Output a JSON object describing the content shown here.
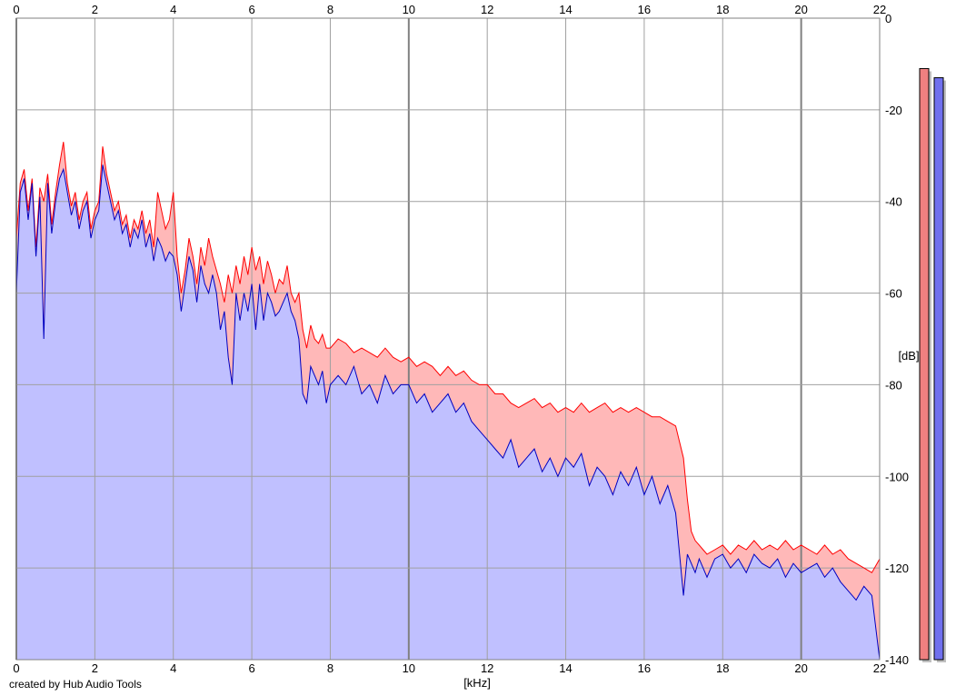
{
  "credit": "created by Hub Audio Tools",
  "chart_data": {
    "type": "area",
    "xlabel": "[kHz]",
    "ylabel": "[dB]",
    "xlim": [
      0,
      22
    ],
    "ylim": [
      -140,
      0
    ],
    "x_ticks": [
      0,
      2,
      4,
      6,
      8,
      10,
      12,
      14,
      16,
      18,
      20,
      22
    ],
    "y_ticks": [
      0,
      -20,
      -40,
      -60,
      -80,
      -100,
      -120,
      -140
    ],
    "grid": true,
    "series": [
      {
        "color": "#ff0000",
        "fill": "#ffb8b8",
        "x": [
          0.0,
          0.1,
          0.2,
          0.3,
          0.4,
          0.5,
          0.6,
          0.7,
          0.8,
          0.9,
          1.0,
          1.1,
          1.2,
          1.3,
          1.4,
          1.5,
          1.6,
          1.7,
          1.8,
          1.9,
          2.0,
          2.1,
          2.2,
          2.3,
          2.4,
          2.5,
          2.6,
          2.7,
          2.8,
          2.9,
          3.0,
          3.1,
          3.2,
          3.3,
          3.4,
          3.5,
          3.6,
          3.7,
          3.8,
          3.9,
          4.0,
          4.1,
          4.2,
          4.3,
          4.4,
          4.5,
          4.6,
          4.7,
          4.8,
          4.9,
          5.0,
          5.1,
          5.2,
          5.3,
          5.4,
          5.5,
          5.6,
          5.7,
          5.8,
          5.9,
          6.0,
          6.1,
          6.2,
          6.3,
          6.4,
          6.5,
          6.6,
          6.7,
          6.8,
          6.9,
          7.0,
          7.1,
          7.2,
          7.3,
          7.4,
          7.5,
          7.6,
          7.7,
          7.8,
          7.9,
          8.0,
          8.2,
          8.4,
          8.6,
          8.8,
          9.0,
          9.2,
          9.4,
          9.6,
          9.8,
          10.0,
          10.2,
          10.4,
          10.6,
          10.8,
          11.0,
          11.2,
          11.4,
          11.6,
          11.8,
          12.0,
          12.2,
          12.4,
          12.6,
          12.8,
          13.0,
          13.2,
          13.4,
          13.6,
          13.8,
          14.0,
          14.2,
          14.4,
          14.6,
          14.8,
          15.0,
          15.2,
          15.4,
          15.6,
          15.8,
          16.0,
          16.2,
          16.4,
          16.6,
          16.8,
          17.0,
          17.1,
          17.2,
          17.3,
          17.4,
          17.5,
          17.6,
          17.8,
          18.0,
          18.2,
          18.4,
          18.6,
          18.8,
          19.0,
          19.2,
          19.4,
          19.6,
          19.8,
          20.0,
          20.2,
          20.4,
          20.6,
          20.8,
          21.0,
          21.2,
          21.4,
          21.6,
          21.8,
          22.0
        ],
        "values": [
          -48,
          -36,
          -33,
          -42,
          -35,
          -50,
          -37,
          -40,
          -34,
          -45,
          -38,
          -32,
          -27,
          -36,
          -41,
          -38,
          -44,
          -40,
          -38,
          -46,
          -42,
          -40,
          -28,
          -34,
          -38,
          -42,
          -40,
          -45,
          -43,
          -48,
          -44,
          -46,
          -42,
          -47,
          -44,
          -50,
          -38,
          -42,
          -46,
          -44,
          -38,
          -52,
          -60,
          -55,
          -48,
          -52,
          -58,
          -50,
          -54,
          -48,
          -52,
          -55,
          -58,
          -62,
          -56,
          -60,
          -54,
          -58,
          -52,
          -56,
          -50,
          -55,
          -52,
          -58,
          -53,
          -56,
          -60,
          -57,
          -58,
          -54,
          -60,
          -62,
          -60,
          -68,
          -72,
          -67,
          -70,
          -71,
          -69,
          -72,
          -72,
          -70,
          -71,
          -73,
          -72,
          -73,
          -74,
          -72,
          -74,
          -75,
          -74,
          -76,
          -75,
          -76,
          -78,
          -76,
          -78,
          -77,
          -79,
          -80,
          -80,
          -82,
          -82,
          -84,
          -85,
          -84,
          -83,
          -85,
          -84,
          -86,
          -85,
          -86,
          -84,
          -86,
          -85,
          -84,
          -86,
          -85,
          -86,
          -85,
          -86,
          -87,
          -87,
          -88,
          -89,
          -96,
          -105,
          -112,
          -114,
          -115,
          -116,
          -117,
          -116,
          -115,
          -117,
          -115,
          -116,
          -114,
          -116,
          -115,
          -116,
          -114,
          -116,
          -115,
          -116,
          -117,
          -115,
          -117,
          -116,
          -118,
          -119,
          -120,
          -121,
          -118
        ]
      },
      {
        "color": "#0000c0",
        "fill": "#c0c0ff",
        "x": [
          0.0,
          0.1,
          0.2,
          0.3,
          0.4,
          0.5,
          0.6,
          0.7,
          0.8,
          0.9,
          1.0,
          1.1,
          1.2,
          1.3,
          1.4,
          1.5,
          1.6,
          1.7,
          1.8,
          1.9,
          2.0,
          2.1,
          2.2,
          2.3,
          2.4,
          2.5,
          2.6,
          2.7,
          2.8,
          2.9,
          3.0,
          3.1,
          3.2,
          3.3,
          3.4,
          3.5,
          3.6,
          3.7,
          3.8,
          3.9,
          4.0,
          4.1,
          4.2,
          4.3,
          4.4,
          4.5,
          4.6,
          4.7,
          4.8,
          4.9,
          5.0,
          5.1,
          5.2,
          5.3,
          5.4,
          5.5,
          5.6,
          5.7,
          5.8,
          5.9,
          6.0,
          6.1,
          6.2,
          6.3,
          6.4,
          6.5,
          6.6,
          6.7,
          6.8,
          6.9,
          7.0,
          7.1,
          7.2,
          7.3,
          7.4,
          7.5,
          7.6,
          7.7,
          7.8,
          7.9,
          8.0,
          8.2,
          8.4,
          8.6,
          8.8,
          9.0,
          9.2,
          9.4,
          9.6,
          9.8,
          10.0,
          10.2,
          10.4,
          10.6,
          10.8,
          11.0,
          11.2,
          11.4,
          11.6,
          11.8,
          12.0,
          12.2,
          12.4,
          12.6,
          12.8,
          13.0,
          13.2,
          13.4,
          13.6,
          13.8,
          14.0,
          14.2,
          14.4,
          14.6,
          14.8,
          15.0,
          15.2,
          15.4,
          15.6,
          15.8,
          16.0,
          16.2,
          16.4,
          16.6,
          16.8,
          17.0,
          17.1,
          17.2,
          17.3,
          17.4,
          17.5,
          17.6,
          17.8,
          18.0,
          18.2,
          18.4,
          18.6,
          18.8,
          19.0,
          19.2,
          19.4,
          19.6,
          19.8,
          20.0,
          20.2,
          20.4,
          20.6,
          20.8,
          21.0,
          21.2,
          21.4,
          21.6,
          21.8,
          22.0
        ],
        "values": [
          -60,
          -38,
          -35,
          -44,
          -36,
          -52,
          -39,
          -70,
          -36,
          -47,
          -40,
          -35,
          -33,
          -38,
          -43,
          -40,
          -46,
          -42,
          -40,
          -48,
          -44,
          -42,
          -32,
          -36,
          -40,
          -44,
          -42,
          -47,
          -45,
          -50,
          -46,
          -48,
          -44,
          -50,
          -47,
          -53,
          -48,
          -50,
          -53,
          -51,
          -52,
          -56,
          -64,
          -58,
          -52,
          -55,
          -62,
          -54,
          -58,
          -60,
          -56,
          -60,
          -68,
          -64,
          -74,
          -80,
          -60,
          -66,
          -60,
          -64,
          -58,
          -68,
          -58,
          -66,
          -60,
          -62,
          -65,
          -64,
          -62,
          -60,
          -64,
          -66,
          -70,
          -82,
          -84,
          -76,
          -78,
          -80,
          -77,
          -84,
          -80,
          -78,
          -80,
          -76,
          -82,
          -80,
          -84,
          -78,
          -82,
          -80,
          -80,
          -84,
          -82,
          -86,
          -84,
          -82,
          -86,
          -84,
          -88,
          -90,
          -92,
          -94,
          -96,
          -92,
          -98,
          -96,
          -94,
          -99,
          -96,
          -100,
          -96,
          -98,
          -95,
          -102,
          -98,
          -100,
          -104,
          -99,
          -102,
          -98,
          -104,
          -100,
          -106,
          -102,
          -108,
          -126,
          -117,
          -119,
          -121,
          -118,
          -120,
          -122,
          -118,
          -117,
          -120,
          -118,
          -121,
          -117,
          -119,
          -120,
          -118,
          -122,
          -119,
          -121,
          -120,
          -119,
          -122,
          -120,
          -123,
          -125,
          -127,
          -124,
          -126,
          -140
        ]
      }
    ]
  },
  "level_meters": [
    {
      "color": "#f08080",
      "level_db": -11
    },
    {
      "color": "#7070ee",
      "level_db": -13
    }
  ]
}
